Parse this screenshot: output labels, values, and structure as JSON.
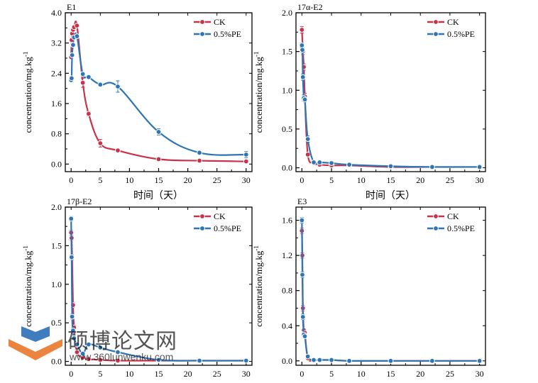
{
  "figure": {
    "colors": {
      "ck": "#c8324a",
      "pe": "#2f74b5",
      "axis": "#000000"
    }
  },
  "watermark": {
    "text_cn": "硕博论文网",
    "url": "www.360lunwenku.com",
    "logo_icon": "book-logo-icon",
    "colors": {
      "orange": "#e8772a",
      "blue": "#2a6fb8"
    }
  },
  "chart_data": [
    {
      "type": "line",
      "panel_label": "E1",
      "xlabel": "时间（天）",
      "ylabel": "concentration/mg.kg-1",
      "xlim": [
        -1,
        31
      ],
      "ylim": [
        -0.2,
        4.0
      ],
      "xticks": [
        0,
        5,
        10,
        15,
        20,
        25,
        30
      ],
      "yticks": [
        0.0,
        0.8,
        1.6,
        2.4,
        3.2,
        4.0
      ],
      "ytick_labels": [
        "0.0",
        "0.8",
        "1.6",
        "2.4",
        "3.2",
        "4.0"
      ],
      "legend": "top-right",
      "series": [
        {
          "name": "CK",
          "key": "ck",
          "x": [
            0,
            0.08,
            0.17,
            0.33,
            0.5,
            1,
            2,
            3,
            5,
            8,
            15,
            22,
            30
          ],
          "y": [
            2.83,
            3.28,
            3.45,
            3.55,
            3.62,
            3.66,
            2.15,
            1.33,
            0.55,
            0.36,
            0.13,
            0.09,
            0.07
          ],
          "err": [
            0.04,
            0.05,
            0.05,
            0.04,
            0.04,
            0.04,
            0.12,
            0.06,
            0.1,
            0.02,
            0.02,
            0.01,
            0.01
          ]
        },
        {
          "name": "0.5%PE",
          "key": "pe",
          "x": [
            0,
            0.08,
            0.17,
            0.33,
            0.5,
            1,
            2,
            3,
            5,
            8,
            15,
            22,
            30
          ],
          "y": [
            2.22,
            2.27,
            2.88,
            3.15,
            3.35,
            3.38,
            2.38,
            2.3,
            2.1,
            2.05,
            0.85,
            0.3,
            0.25
          ],
          "err": [
            0.04,
            0.04,
            0.05,
            0.04,
            0.04,
            0.04,
            0.05,
            0.04,
            0.04,
            0.15,
            0.08,
            0.02,
            0.08
          ]
        }
      ]
    },
    {
      "type": "line",
      "panel_label": "17α-E2",
      "xlabel": "时间（天）",
      "ylabel": "concentration/mg.kg-1",
      "xlim": [
        -1,
        31
      ],
      "ylim": [
        -0.05,
        2.0
      ],
      "xticks": [
        0,
        5,
        10,
        15,
        20,
        25,
        30
      ],
      "yticks": [
        0.0,
        0.5,
        1.0,
        1.5,
        2.0
      ],
      "ytick_labels": [
        "0.0",
        "0.5",
        "1.0",
        "1.5",
        "2.0"
      ],
      "legend": "top-right",
      "series": [
        {
          "name": "CK",
          "key": "ck",
          "x": [
            0,
            0.17,
            0.33,
            0.5,
            1,
            2,
            3,
            5,
            8,
            15,
            22,
            30
          ],
          "y": [
            1.78,
            1.5,
            1.3,
            0.92,
            0.17,
            0.06,
            0.04,
            0.03,
            0.03,
            0.01,
            0.01,
            0.01
          ],
          "err": [
            0.04,
            0.04,
            0.04,
            0.04,
            0.02,
            0.01,
            0.01,
            0.01,
            0.01,
            0.0,
            0.0,
            0.0
          ]
        },
        {
          "name": "0.5%PE",
          "key": "pe",
          "x": [
            0,
            0.08,
            0.17,
            0.33,
            0.5,
            1,
            2,
            3,
            5,
            8,
            15,
            22,
            30
          ],
          "y": [
            1.58,
            1.52,
            1.17,
            0.9,
            0.88,
            0.37,
            0.07,
            0.07,
            0.06,
            0.04,
            0.02,
            0.01,
            0.01
          ],
          "err": [
            0.03,
            0.03,
            0.04,
            0.04,
            0.03,
            0.04,
            0.01,
            0.01,
            0.01,
            0.01,
            0.0,
            0.0,
            0.0
          ]
        }
      ]
    },
    {
      "type": "line",
      "panel_label": "17β-E2",
      "xlabel": "",
      "ylabel": "concentration/mg.kg-1",
      "xlim": [
        -1,
        31
      ],
      "ylim": [
        -0.05,
        2.0
      ],
      "xticks": [
        0,
        5,
        10,
        15,
        20,
        25,
        30
      ],
      "yticks": [
        0.0,
        0.5,
        1.0,
        1.5,
        2.0
      ],
      "ytick_labels": [
        "0.0",
        "0.5",
        "1.0",
        "1.5",
        "2.0"
      ],
      "legend": "top-right",
      "series": [
        {
          "name": "CK",
          "key": "ck",
          "x": [
            0,
            0.08,
            0.17,
            0.33,
            0.5,
            1,
            2,
            3,
            5,
            8,
            15,
            22,
            30
          ],
          "y": [
            1.67,
            1.6,
            1.35,
            0.73,
            0.44,
            0.12,
            0.05,
            0.03,
            0.02,
            0.01,
            0.01,
            0.01,
            0.01
          ],
          "err": [
            0.03,
            0.03,
            0.03,
            0.03,
            0.03,
            0.02,
            0.01,
            0.01,
            0.0,
            0.0,
            0.0,
            0.0,
            0.0
          ]
        },
        {
          "name": "0.5%PE",
          "key": "pe",
          "x": [
            0,
            0.08,
            0.17,
            0.33,
            0.5,
            1,
            2,
            3,
            5,
            8,
            15,
            22,
            30
          ],
          "y": [
            1.85,
            1.35,
            0.58,
            0.4,
            0.3,
            0.22,
            0.1,
            0.22,
            0.18,
            0.12,
            0.02,
            0.01,
            0.01
          ],
          "err": [
            0.03,
            0.03,
            0.03,
            0.03,
            0.02,
            0.02,
            0.01,
            0.02,
            0.02,
            0.01,
            0.0,
            0.0,
            0.0
          ]
        }
      ]
    },
    {
      "type": "line",
      "panel_label": "E3",
      "xlabel": "",
      "ylabel": "concentration/mg.kg-1",
      "xlim": [
        -1,
        31
      ],
      "ylim": [
        -0.05,
        1.75
      ],
      "xticks": [
        0,
        5,
        10,
        15,
        20,
        25,
        30
      ],
      "yticks": [
        0.0,
        0.4,
        0.8,
        1.2,
        1.6
      ],
      "ytick_labels": [
        "0.0",
        "0.4",
        "0.8",
        "1.2",
        "1.6"
      ],
      "legend": "top-right",
      "series": [
        {
          "name": "CK",
          "key": "ck",
          "x": [
            0,
            0.08,
            0.17,
            0.33,
            0.5,
            1,
            2,
            3,
            5,
            8,
            15,
            22,
            30
          ],
          "y": [
            1.48,
            1.2,
            0.6,
            0.35,
            0.32,
            0.03,
            0.01,
            0.01,
            0.01,
            0.0,
            0.0,
            0.0,
            0.0
          ],
          "err": [
            0.03,
            0.03,
            0.03,
            0.02,
            0.02,
            0.01,
            0.0,
            0.0,
            0.0,
            0.0,
            0.0,
            0.0,
            0.0
          ]
        },
        {
          "name": "0.5%PE",
          "key": "pe",
          "x": [
            0,
            0.08,
            0.17,
            0.33,
            0.5,
            1,
            2,
            3,
            5,
            8,
            15,
            22,
            30
          ],
          "y": [
            1.6,
            0.98,
            0.5,
            0.3,
            0.28,
            0.05,
            0.01,
            0.01,
            0.01,
            0.0,
            0.0,
            0.0,
            0.0
          ],
          "err": [
            0.03,
            0.03,
            0.03,
            0.02,
            0.02,
            0.01,
            0.0,
            0.0,
            0.0,
            0.0,
            0.0,
            0.0,
            0.0
          ]
        }
      ]
    }
  ]
}
